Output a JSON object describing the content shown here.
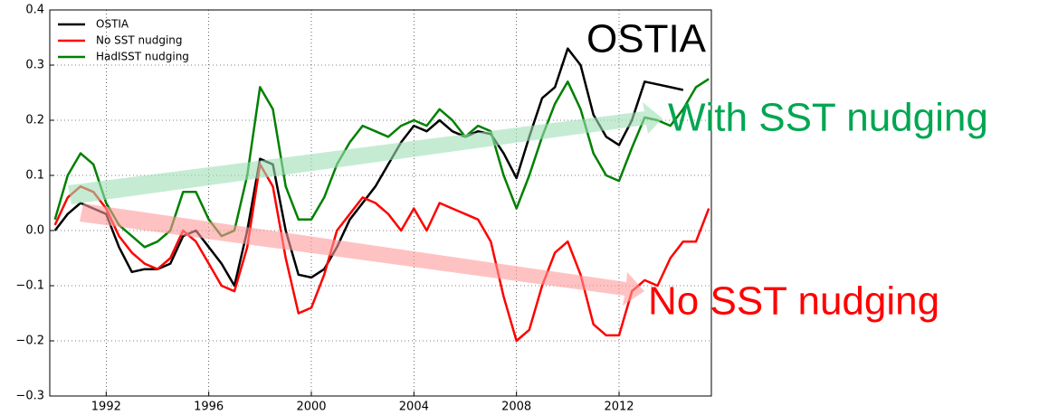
{
  "chart_data": {
    "type": "line",
    "x": [
      1990,
      1990.5,
      1991,
      1991.5,
      1992,
      1992.5,
      1993,
      1993.5,
      1994,
      1994.5,
      1995,
      1995.5,
      1996,
      1996.5,
      1997,
      1997.5,
      1998,
      1998.5,
      1999,
      1999.5,
      2000,
      2000.5,
      2001,
      2001.5,
      2002,
      2002.5,
      2003,
      2003.5,
      2004,
      2004.5,
      2005,
      2005.5,
      2006,
      2006.5,
      2007,
      2007.5,
      2008,
      2008.5,
      2009,
      2009.5,
      2010,
      2010.5,
      2011,
      2011.5,
      2012,
      2012.5,
      2013,
      2013.5,
      2014,
      2014.5,
      2015,
      2015.5
    ],
    "series": [
      {
        "name": "OSTIA",
        "color": "#000000",
        "values": [
          0.0,
          0.03,
          0.05,
          0.04,
          0.03,
          -0.03,
          -0.075,
          -0.07,
          -0.07,
          -0.06,
          -0.01,
          0.0,
          -0.03,
          -0.06,
          -0.1,
          0.0,
          0.13,
          0.12,
          0.0,
          -0.08,
          -0.085,
          -0.07,
          -0.03,
          0.02,
          0.05,
          0.08,
          0.12,
          0.16,
          0.19,
          0.18,
          0.2,
          0.18,
          0.17,
          0.18,
          0.175,
          0.14,
          0.095,
          0.17,
          0.24,
          0.26,
          0.33,
          0.3,
          0.21,
          0.17,
          0.155,
          0.2,
          0.27,
          0.265,
          0.26,
          0.255,
          null,
          null
        ]
      },
      {
        "name": "No SST nudging",
        "color": "#ff0000",
        "values": [
          0.01,
          0.06,
          0.08,
          0.07,
          0.04,
          -0.01,
          -0.04,
          -0.06,
          -0.07,
          -0.05,
          0.0,
          -0.02,
          -0.06,
          -0.1,
          -0.11,
          -0.03,
          0.12,
          0.08,
          -0.05,
          -0.15,
          -0.14,
          -0.08,
          0.0,
          0.03,
          0.06,
          0.05,
          0.03,
          0.0,
          0.04,
          0.0,
          0.05,
          0.04,
          0.03,
          0.02,
          -0.02,
          -0.12,
          -0.2,
          -0.18,
          -0.1,
          -0.04,
          -0.02,
          -0.08,
          -0.17,
          -0.19,
          -0.19,
          -0.11,
          -0.09,
          -0.1,
          -0.05,
          -0.02,
          -0.02,
          0.04
        ]
      },
      {
        "name": "HadISST nudging",
        "color": "#008000",
        "values": [
          0.02,
          0.1,
          0.14,
          0.12,
          0.05,
          0.01,
          -0.01,
          -0.03,
          -0.02,
          0.0,
          0.07,
          0.07,
          0.02,
          -0.01,
          0.0,
          0.1,
          0.26,
          0.22,
          0.08,
          0.02,
          0.02,
          0.06,
          0.12,
          0.16,
          0.19,
          0.18,
          0.17,
          0.19,
          0.2,
          0.19,
          0.22,
          0.2,
          0.17,
          0.19,
          0.18,
          0.1,
          0.04,
          0.1,
          0.17,
          0.23,
          0.27,
          0.22,
          0.14,
          0.1,
          0.09,
          0.15,
          0.205,
          0.2,
          0.19,
          0.22,
          0.26,
          0.275
        ]
      }
    ],
    "xlim": [
      1989.8,
      2015.6
    ],
    "xticks": [
      1992,
      1996,
      2000,
      2004,
      2008,
      2012
    ],
    "ylim": [
      -0.3,
      0.4
    ],
    "yticks": [
      {
        "value": -0.3,
        "label": "−0.3"
      },
      {
        "value": -0.2,
        "label": "−0.2"
      },
      {
        "value": -0.1,
        "label": "−0.1"
      },
      {
        "value": 0,
        "label": "0.0"
      },
      0.1,
      0.2,
      0.3,
      0.4
    ],
    "grid": true,
    "legend": "upper left",
    "annotations": [
      {
        "text": "OSTIA",
        "color": "#000000"
      },
      {
        "text": "With SST nudging",
        "color": "#00a651"
      },
      {
        "text": "No SST nudging",
        "color": "#ff0000"
      }
    ]
  }
}
